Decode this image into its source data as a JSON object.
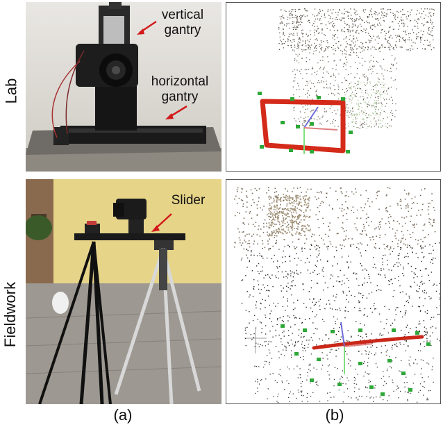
{
  "figure": {
    "row_labels": [
      "Lab",
      "Fieldwork"
    ],
    "column_captions": [
      "(a)",
      "(b)"
    ],
    "annotations": {
      "vertical_gantry": "vertical gantry",
      "horizontal_gantry": "horizontal gantry",
      "slider": "Slider"
    },
    "colors": {
      "arrow": "#d21a1a",
      "trajectory": "#d42a1a",
      "camera_marker": "#2da836",
      "point_cloud": "#5a5248"
    }
  }
}
